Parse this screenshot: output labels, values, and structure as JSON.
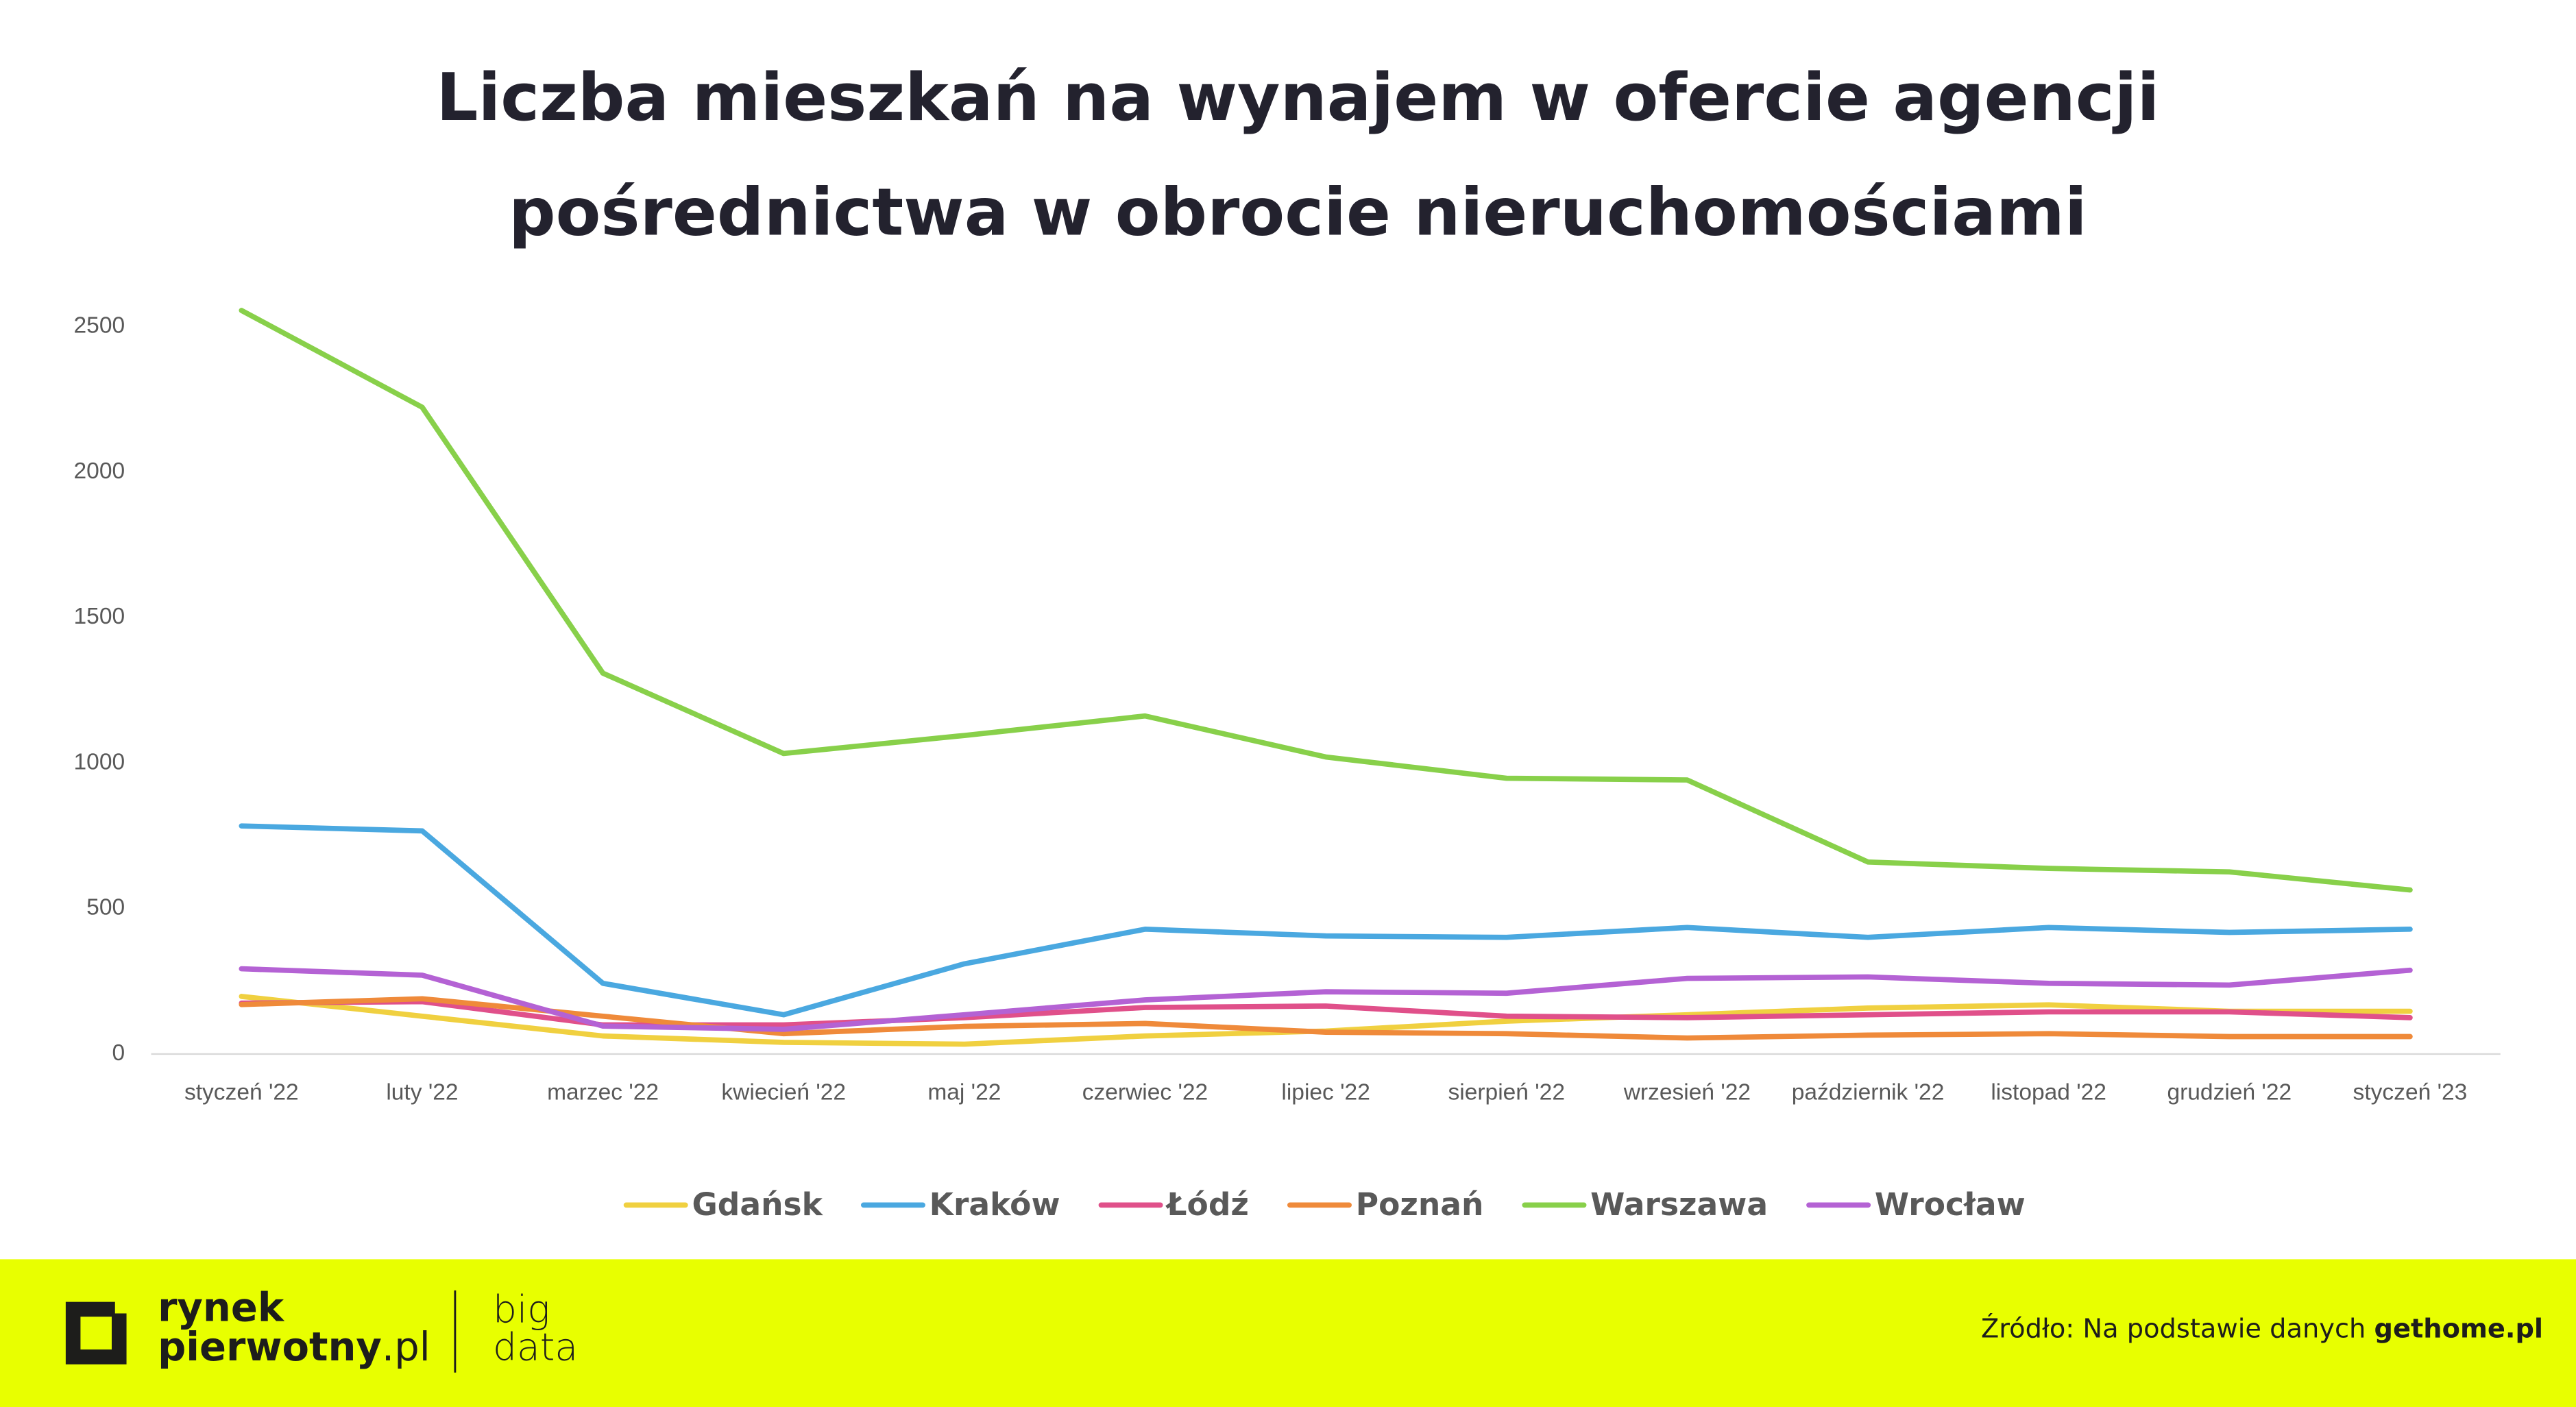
{
  "chart_data": {
    "type": "line",
    "title": [
      "Liczba mieszkań na wynajem w ofercie agencji",
      "pośrednictwa w obrocie nieruchomościami"
    ],
    "categories": [
      "styczeń '22",
      "luty '22",
      "marzec '22",
      "kwiecień '22",
      "maj '22",
      "czerwiec '22",
      "lipiec '22",
      "sierpień '22",
      "wrzesień '22",
      "październik '22",
      "listopad '22",
      "grudzień '22",
      "styczeń '23"
    ],
    "series": [
      {
        "name": "Gdańsk",
        "color": "#f0d040",
        "values": [
          198,
          130,
          62,
          40,
          34,
          62,
          79,
          113,
          135,
          158,
          169,
          147,
          147
        ]
      },
      {
        "name": "Kraków",
        "color": "#4aa8e0",
        "values": [
          784,
          767,
          243,
          135,
          310,
          429,
          406,
          401,
          435,
          401,
          435,
          418,
          429
        ]
      },
      {
        "name": "Łódź",
        "color": "#e0508a",
        "values": [
          175,
          180,
          100,
          100,
          125,
          160,
          165,
          130,
          125,
          135,
          145,
          145,
          125
        ]
      },
      {
        "name": "Poznań",
        "color": "#ef8a3a",
        "values": [
          170,
          190,
          130,
          70,
          95,
          105,
          75,
          70,
          55,
          65,
          70,
          60,
          60
        ]
      },
      {
        "name": "Warszawa",
        "color": "#88d04a",
        "values": [
          2556,
          2223,
          1309,
          1033,
          1095,
          1162,
          1021,
          948,
          942,
          660,
          638,
          626,
          564
        ]
      },
      {
        "name": "Wrocław",
        "color": "#b462d4",
        "values": [
          293,
          271,
          96,
          85,
          135,
          186,
          214,
          209,
          260,
          265,
          243,
          237,
          288
        ]
      }
    ],
    "ylim": [
      0,
      2600
    ],
    "yticks": [
      0,
      500,
      1000,
      1500,
      2000,
      2500
    ],
    "grid": false,
    "legend": "bottom"
  },
  "footer": {
    "logo_line1": "rynek",
    "logo_line2": "pierwotny",
    "logo_suffix": ".pl",
    "tag_line1": "big",
    "tag_line2": "data",
    "source_prefix": "Źródło: Na podstawie danych ",
    "source_site": "gethome.pl"
  }
}
